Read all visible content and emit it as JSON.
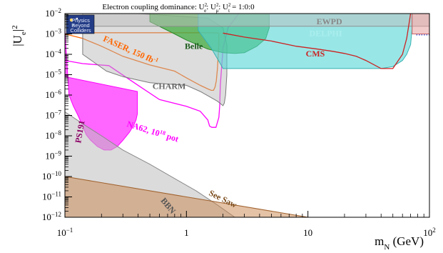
{
  "chart_data": {
    "type": "area",
    "title": "Electron coupling dominance: U²ₑ: U²μ: U²τ = 1:0:0",
    "title_parts": {
      "prefix": "Electron coupling dominance: U",
      "sub_e": "e",
      "sep1": ": U",
      "sub_mu": "μ",
      "sep2": ": U",
      "sub_tau": "τ",
      "suffix": " = 1:0:0"
    },
    "xlabel": "m",
    "xlabel_sub": "N",
    "xlabel_unit": " (GeV)",
    "ylabel": "|U",
    "ylabel_sub": "e",
    "ylabel_end": "|",
    "x_scale": "log",
    "y_scale": "log",
    "xlim": [
      0.1,
      100
    ],
    "ylim": [
      1e-12,
      0.01
    ],
    "x_ticks": [
      {
        "value": 0.1,
        "base": "10",
        "exp": "−1"
      },
      {
        "value": 1,
        "base": "1",
        "exp": ""
      },
      {
        "value": 10,
        "base": "10",
        "exp": ""
      },
      {
        "value": 100,
        "base": "10",
        "exp": "2"
      }
    ],
    "y_ticks": [
      {
        "value": 0.01,
        "exp": "−2"
      },
      {
        "value": 0.001,
        "exp": "−3"
      },
      {
        "value": 0.0001,
        "exp": "−4"
      },
      {
        "value": 1e-05,
        "exp": "−5"
      },
      {
        "value": 1e-06,
        "exp": "−6"
      },
      {
        "value": 1e-07,
        "exp": "−7"
      },
      {
        "value": 1e-08,
        "exp": "−8"
      },
      {
        "value": 1e-09,
        "exp": "−9"
      },
      {
        "value": 1e-10,
        "exp": "−10"
      },
      {
        "value": 1e-11,
        "exp": "−11"
      },
      {
        "value": 1e-12,
        "exp": "−12"
      }
    ],
    "grid": false,
    "logo": {
      "lines": [
        "Physics",
        "Beyond",
        "Colliders"
      ]
    },
    "series": [
      {
        "name": "PS191",
        "kind": "region",
        "fill": "#ff00ff",
        "fill_opacity": 0.6,
        "stroke": "#ff00ff",
        "x": [
          0.1,
          0.1,
          0.395,
          0.395,
          0.385,
          0.37,
          0.34,
          0.3,
          0.27,
          0.24,
          0.21,
          0.185,
          0.163,
          0.15,
          0.14,
          0.128,
          0.117,
          0.108
        ],
        "y": [
          0.0015,
          8e-06,
          1.5e-06,
          1.2e-07,
          6e-08,
          3.5e-08,
          1.5e-08,
          6e-09,
          3e-09,
          2e-09,
          2e-09,
          3e-09,
          6e-09,
          1.1e-08,
          3e-08,
          1e-07,
          3e-07,
          1e-06
        ]
      },
      {
        "name": "NA62, 10¹⁸ pot",
        "label_main": "NA62, 10",
        "label_sup": "18",
        "label_end": " pot",
        "kind": "line",
        "stroke": "#ff00ff",
        "x": [
          0.1,
          0.14,
          0.23,
          0.4,
          0.6,
          1.0,
          1.3,
          1.5,
          1.55,
          1.62,
          1.75,
          1.85,
          1.88,
          1.9,
          2.0,
          2.2,
          2.7
        ],
        "y": [
          5e-05,
          3.5e-05,
          2.8e-05,
          3e-06,
          6e-07,
          2.8e-07,
          1.6e-07,
          6e-08,
          3e-08,
          2.6e-08,
          2.6e-08,
          8e-08,
          3e-07,
          3e-06,
          0.0002,
          0.002,
          0.01
        ]
      },
      {
        "name": "FASER, 150 fb⁻¹",
        "label_main": "FASER, 150 fb",
        "label_sup": "-1",
        "kind": "line",
        "stroke": "#ff6600",
        "x": [
          0.1,
          0.14,
          0.2,
          0.3,
          0.5,
          0.8,
          1.0,
          1.3,
          1.5,
          1.6,
          1.67,
          1.72,
          1.76,
          1.8,
          1.85,
          1.85,
          1.6,
          1.0,
          0.15,
          0.1
        ],
        "y": [
          0.001,
          0.0006,
          0.00025,
          8e-05,
          3e-05,
          1.5e-05,
          7e-06,
          3e-06,
          2e-06,
          1.7e-06,
          1.7e-06,
          2.5e-06,
          5e-06,
          2e-05,
          0.0003,
          0.0011,
          0.00115,
          0.00115,
          0.00115,
          0.001
        ]
      },
      {
        "name": "CHARM",
        "kind": "region",
        "fill": "#b3b3b3",
        "fill_opacity": 0.45,
        "stroke": "#7a7a7a",
        "x": [
          0.14,
          0.14,
          0.22,
          0.3,
          0.5,
          1.0,
          1.3,
          1.8,
          2.0,
          2.05,
          2.1,
          2.15,
          2.15,
          2.0,
          1.5,
          0.4,
          0.2,
          0.14
        ],
        "y": [
          0.01,
          0.0001,
          1.5e-05,
          8e-06,
          4e-06,
          3e-06,
          1.5e-06,
          5e-07,
          3e-07,
          4e-07,
          1e-06,
          1e-05,
          0.0003,
          0.002,
          0.006,
          0.01,
          0.01,
          0.01
        ]
      },
      {
        "name": "Belle",
        "kind": "region",
        "fill": "#3caa3c",
        "fill_opacity": 0.72,
        "stroke": "#2a8a2a",
        "x": [
          0.5,
          0.5,
          0.8,
          1.0,
          1.5,
          2.0,
          2.5,
          3.0,
          3.8,
          4.5,
          4.8,
          4.8
        ],
        "y": [
          0.01,
          0.004,
          0.001,
          0.0005,
          0.00018,
          0.00012,
          0.00011,
          0.00012,
          0.00025,
          0.0006,
          0.002,
          0.01
        ]
      },
      {
        "name": "DELPHI",
        "kind": "region",
        "fill": "#55d5d5",
        "fill_opacity": 0.6,
        "stroke": "#38b0b0",
        "x": [
          1.25,
          1.25,
          1.6,
          1.9,
          2.0,
          4.0,
          10,
          20,
          30,
          40,
          50,
          60,
          65,
          70,
          72,
          72
        ],
        "y": [
          0.01,
          0.0015,
          0.0002,
          3.5e-05,
          2e-05,
          2e-05,
          2e-05,
          2e-05,
          2e-05,
          2e-05,
          2.5e-05,
          5e-05,
          0.0001,
          0.0003,
          0.002,
          0.01
        ]
      },
      {
        "name": "EWPD",
        "kind": "region",
        "fill": "#bdbdbd",
        "fill_opacity": 0.5,
        "stroke": "#909090",
        "x": [
          0.1,
          100,
          100,
          0.1
        ],
        "y": [
          0.0024,
          0.0024,
          0.01,
          0.01
        ]
      },
      {
        "name": "CMS",
        "kind": "line",
        "stroke": "#cc2222",
        "x": [
          2.0,
          3.0,
          5.0,
          8.0,
          12,
          16,
          20,
          25,
          30,
          40,
          50,
          60,
          65,
          70
        ],
        "y": [
          0.0011,
          0.0007,
          0.00045,
          0.00025,
          0.00018,
          0.00014,
          0.00011,
          8e-05,
          5e-05,
          2e-05,
          2e-05,
          0.0001,
          0.0006,
          0.01
        ]
      },
      {
        "name": "BBN",
        "kind": "region",
        "fill": "#bdbdbd",
        "fill_opacity": 0.55,
        "stroke": "#8a8a8a",
        "x": [
          0.1,
          0.15,
          0.2,
          0.3,
          0.5,
          0.8,
          1.2,
          1.8,
          2.5,
          2.5,
          0.1
        ],
        "y": [
          1.5e-07,
          3e-08,
          1e-08,
          2e-09,
          4e-10,
          8e-11,
          2e-11,
          4e-12,
          1e-12,
          1e-12,
          1e-12
        ]
      },
      {
        "name": "See Saw",
        "kind": "region",
        "fill": "#c9864e",
        "fill_opacity": 0.5,
        "stroke": "#a0622e",
        "x": [
          0.1,
          100,
          100,
          0.1
        ],
        "y": [
          1e-10,
          1e-13,
          1e-12,
          1e-12
        ]
      },
      {
        "name": "Top-right band",
        "kind": "region",
        "fill": "#e8a0a0",
        "fill_opacity": 0.55,
        "stroke": "#cc6666",
        "x": [
          72,
          100,
          100,
          72
        ],
        "y": [
          0.001,
          0.001,
          0.01,
          0.01
        ]
      },
      {
        "name": "Blue dotted",
        "kind": "dotted",
        "stroke": "#3344cc",
        "x": [
          78,
          100
        ],
        "y": [
          0.0009,
          0.0009
        ]
      }
    ],
    "annotations": [
      {
        "series": "PS191",
        "text": "PS191",
        "color": "#8b0066",
        "x": 0.14,
        "y": 1.5e-08,
        "rotate": -80
      },
      {
        "series": "FASER, 150 fb⁻¹",
        "text": "FASER, 150 fb",
        "sup": "-1",
        "color": "#ff6600",
        "x": 0.34,
        "y": 0.00012,
        "rotate": 24
      },
      {
        "series": "Belle",
        "text": "Belle",
        "color": "#1a5a1a",
        "x": 1.15,
        "y": 0.00018,
        "rotate": 0
      },
      {
        "series": "EWPD",
        "text": "EWPD",
        "color": "#888888",
        "x": 15,
        "y": 0.003,
        "rotate": 0
      },
      {
        "series": "DELPHI",
        "text": "DELPHI",
        "color": "#aaeeee",
        "x": 14,
        "y": 0.0008,
        "rotate": 0
      },
      {
        "series": "CMS",
        "text": "CMS",
        "color": "#cc2222",
        "x": 11.5,
        "y": 8e-05,
        "rotate": 0
      },
      {
        "series": "CHARM",
        "text": "CHARM",
        "color": "#666666",
        "x": 0.72,
        "y": 2e-06,
        "rotate": 0
      },
      {
        "series": "NA62, 10¹⁸ pot",
        "text": "NA62, 10",
        "sup": "18",
        "end": " pot",
        "color": "#ff00ff",
        "x": 0.52,
        "y": 1.2e-08,
        "rotate": 17
      },
      {
        "series": "BBN",
        "text": "BBN",
        "color": "#555555",
        "x": 0.68,
        "y": 3e-12,
        "rotate": 50
      },
      {
        "series": "See Saw",
        "text": "See Saw",
        "color": "#7a4a1a",
        "x": 1.95,
        "y": 6e-12,
        "rotate": 26
      }
    ]
  }
}
